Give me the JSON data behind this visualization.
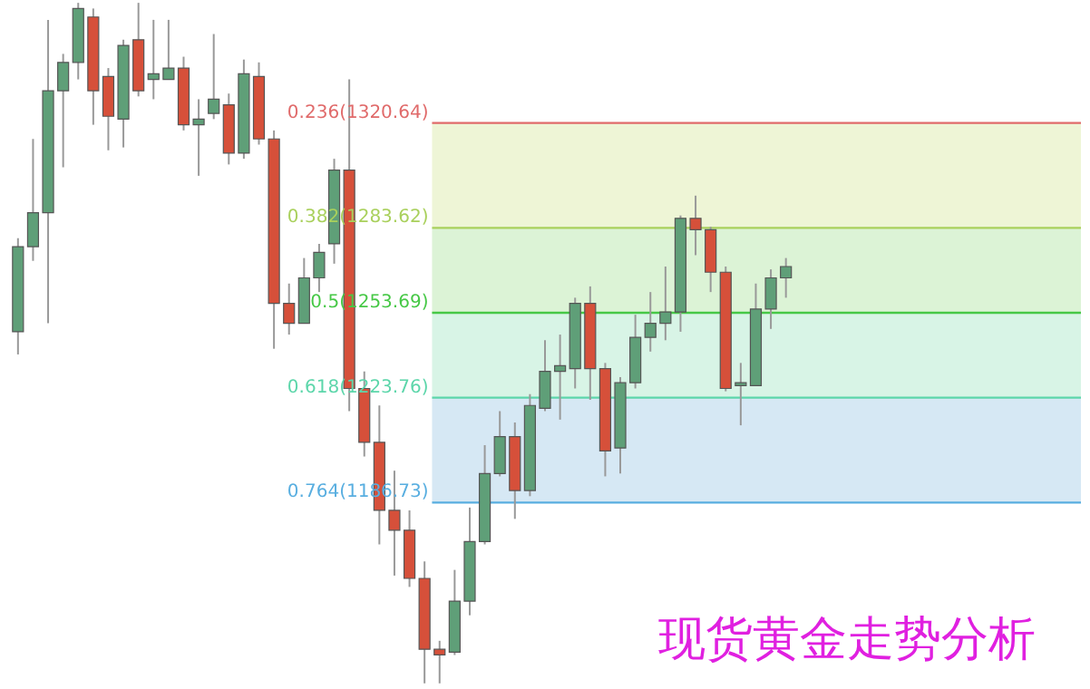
{
  "chart_data": {
    "type": "candlestick",
    "categories": [
      null,
      null,
      null,
      null,
      null,
      null,
      null,
      null,
      null,
      null,
      null,
      null,
      null,
      null,
      null,
      null,
      null,
      null,
      null,
      null,
      null,
      null,
      null,
      null,
      null,
      null,
      null,
      null,
      null,
      null,
      null,
      null,
      null,
      null,
      null,
      null,
      null,
      null,
      null,
      null,
      null,
      null,
      null,
      null,
      null,
      null,
      null,
      null,
      null,
      null,
      null,
      null
    ],
    "ohlc": [
      [
        1247,
        1280,
        1239,
        1277
      ],
      [
        1277,
        1315,
        1272,
        1289
      ],
      [
        1289,
        1357,
        1250,
        1332
      ],
      [
        1332,
        1345,
        1305,
        1342
      ],
      [
        1342,
        1363,
        1336,
        1361
      ],
      [
        1358,
        1361,
        1320,
        1332
      ],
      [
        1337,
        1340,
        1311,
        1323
      ],
      [
        1322,
        1350,
        1312,
        1348
      ],
      [
        1350,
        1363,
        1330,
        1332
      ],
      [
        1336,
        1357,
        1329,
        1338
      ],
      [
        1336,
        1357,
        1336,
        1340
      ],
      [
        1340,
        1344,
        1318,
        1320
      ],
      [
        1320,
        1329,
        1302,
        1322
      ],
      [
        1324,
        1352,
        1322,
        1329
      ],
      [
        1327,
        1331,
        1306,
        1310
      ],
      [
        1310,
        1343,
        1308,
        1338
      ],
      [
        1337,
        1342,
        1313,
        1315
      ],
      [
        1315,
        1318,
        1241,
        1257
      ],
      [
        1257,
        1264,
        1246,
        1250
      ],
      [
        1250,
        1273,
        1250,
        1266
      ],
      [
        1266,
        1278,
        1261,
        1275
      ],
      [
        1278,
        1308,
        1271,
        1304
      ],
      [
        1304,
        1336,
        1219,
        1227
      ],
      [
        1227,
        1233,
        1203,
        1208
      ],
      [
        1208,
        1221,
        1172,
        1184
      ],
      [
        1184,
        1198,
        1161,
        1177
      ],
      [
        1177,
        1184,
        1157,
        1160
      ],
      [
        1160,
        1166,
        1123,
        1135
      ],
      [
        1135,
        1138,
        1123,
        1133
      ],
      [
        1134,
        1163,
        1133,
        1152
      ],
      [
        1152,
        1185,
        1147,
        1173
      ],
      [
        1173,
        1207,
        1172,
        1197
      ],
      [
        1197,
        1219,
        1196,
        1210
      ],
      [
        1210,
        1215,
        1181,
        1191
      ],
      [
        1191,
        1225,
        1189,
        1221
      ],
      [
        1220,
        1244,
        1219,
        1233
      ],
      [
        1233,
        1246,
        1216,
        1235
      ],
      [
        1234,
        1259,
        1227,
        1257
      ],
      [
        1257,
        1263,
        1223,
        1234
      ],
      [
        1234,
        1236,
        1196,
        1205
      ],
      [
        1206,
        1231,
        1197,
        1229
      ],
      [
        1229,
        1253,
        1227,
        1245
      ],
      [
        1245,
        1261,
        1240,
        1250
      ],
      [
        1250,
        1270,
        1244,
        1254
      ],
      [
        1254,
        1288,
        1247,
        1287
      ],
      [
        1287,
        1295,
        1274,
        1283
      ],
      [
        1283,
        1284,
        1261,
        1268
      ],
      [
        1268,
        1270,
        1226,
        1227
      ],
      [
        1228,
        1236,
        1214,
        1229
      ],
      [
        1228,
        1264,
        1228,
        1255
      ],
      [
        1255,
        1269,
        1248,
        1266
      ],
      [
        1266,
        1273,
        1259,
        1270
      ]
    ],
    "colors": [
      "#5f9f78",
      "#5f9f78",
      "#5f9f78",
      "#5f9f78",
      "#5f9f78",
      "#d6503a",
      "#d6503a",
      "#5f9f78",
      "#d6503a",
      "#5f9f78",
      "#5f9f78",
      "#d6503a",
      "#5f9f78",
      "#5f9f78",
      "#d6503a",
      "#5f9f78",
      "#d6503a",
      "#d6503a",
      "#d6503a",
      "#5f9f78",
      "#5f9f78",
      "#5f9f78",
      "#d6503a",
      "#d6503a",
      "#d6503a",
      "#d6503a",
      "#d6503a",
      "#d6503a",
      "#d6503a",
      "#5f9f78",
      "#5f9f78",
      "#5f9f78",
      "#5f9f78",
      "#d6503a",
      "#5f9f78",
      "#5f9f78",
      "#5f9f78",
      "#5f9f78",
      "#d6503a",
      "#d6503a",
      "#5f9f78",
      "#5f9f78",
      "#5f9f78",
      "#5f9f78",
      "#5f9f78",
      "#d6503a",
      "#d6503a",
      "#d6503a",
      "#5f9f78",
      "#5f9f78",
      "#5f9f78",
      "#5f9f78"
    ],
    "ylim": [
      1121,
      1364
    ],
    "tick_labels": false,
    "grid": false,
    "bands": [
      {
        "axis": "y",
        "from": 1283.62,
        "to": 1320.64,
        "color": "#eef5d6"
      },
      {
        "axis": "y",
        "from": 1253.69,
        "to": 1283.62,
        "color": "#dcf3d6"
      },
      {
        "axis": "y",
        "from": 1223.76,
        "to": 1253.69,
        "color": "#d8f4e6"
      },
      {
        "axis": "y",
        "from": 1186.73,
        "to": 1223.76,
        "color": "#d6e8f4"
      }
    ],
    "ref_lines": [
      {
        "axis": "y",
        "value": 1320.64,
        "label": "0.236(1320.64)",
        "color": "#e06a6a"
      },
      {
        "axis": "y",
        "value": 1283.62,
        "label": "0.382(1283.62)",
        "color": "#a9d05c"
      },
      {
        "axis": "y",
        "value": 1253.69,
        "label": "0.5(1253.69)",
        "color": "#46c846"
      },
      {
        "axis": "y",
        "value": 1223.76,
        "label": "0.618(1223.76)",
        "color": "#5cd6aa"
      },
      {
        "axis": "y",
        "value": 1186.73,
        "label": "0.764(1186.73)",
        "color": "#58aee0"
      }
    ],
    "annotations": [
      "现货黄金走势分析"
    ]
  }
}
